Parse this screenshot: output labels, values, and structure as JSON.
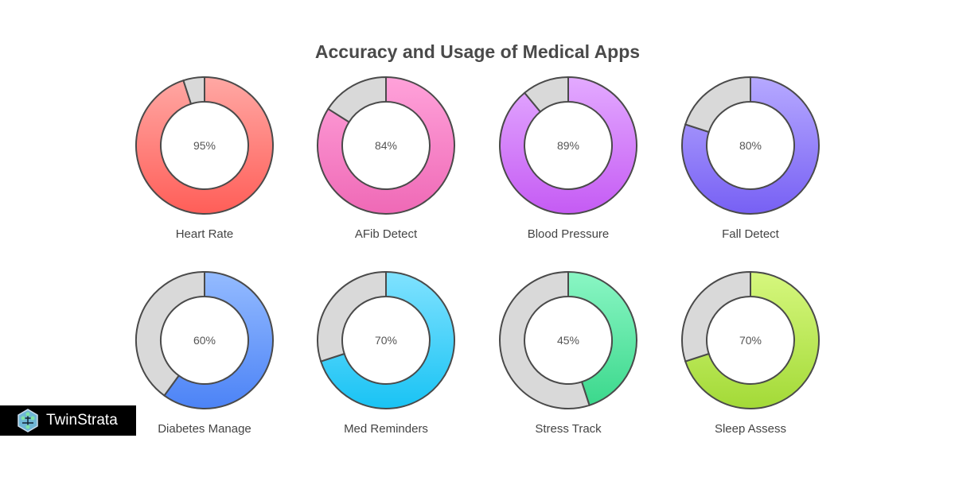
{
  "chart_data": {
    "type": "donut",
    "title": "Accuracy and Usage of Medical Apps",
    "unit": "%",
    "items": [
      {
        "label": "Heart Rate",
        "value": 95,
        "value_label": "95%",
        "colors": [
          "#ffa8a4",
          "#ff5e58"
        ]
      },
      {
        "label": "AFib Detect",
        "value": 84,
        "value_label": "84%",
        "colors": [
          "#ffa2da",
          "#ef69b6"
        ]
      },
      {
        "label": "Blood Pressure",
        "value": 89,
        "value_label": "89%",
        "colors": [
          "#e3aaff",
          "#c55bf4"
        ]
      },
      {
        "label": "Fall Detect",
        "value": 80,
        "value_label": "80%",
        "colors": [
          "#b6a9ff",
          "#7760f4"
        ]
      },
      {
        "label": "Diabetes Manage",
        "value": 60,
        "value_label": "60%",
        "colors": [
          "#94bbff",
          "#4c83f6"
        ]
      },
      {
        "label": "Med Reminders",
        "value": 70,
        "value_label": "70%",
        "colors": [
          "#80e2ff",
          "#19c3f4"
        ]
      },
      {
        "label": "Stress Track",
        "value": 45,
        "value_label": "45%",
        "colors": [
          "#8af6c4",
          "#3bd88c"
        ]
      },
      {
        "label": "Sleep Assess",
        "value": 70,
        "value_label": "70%",
        "colors": [
          "#d6f77e",
          "#a3da37"
        ]
      }
    ],
    "remainder_color": "#d9d9d9",
    "outline_color": "#4a4a4a"
  },
  "logo": {
    "text": "TwinStrata"
  }
}
